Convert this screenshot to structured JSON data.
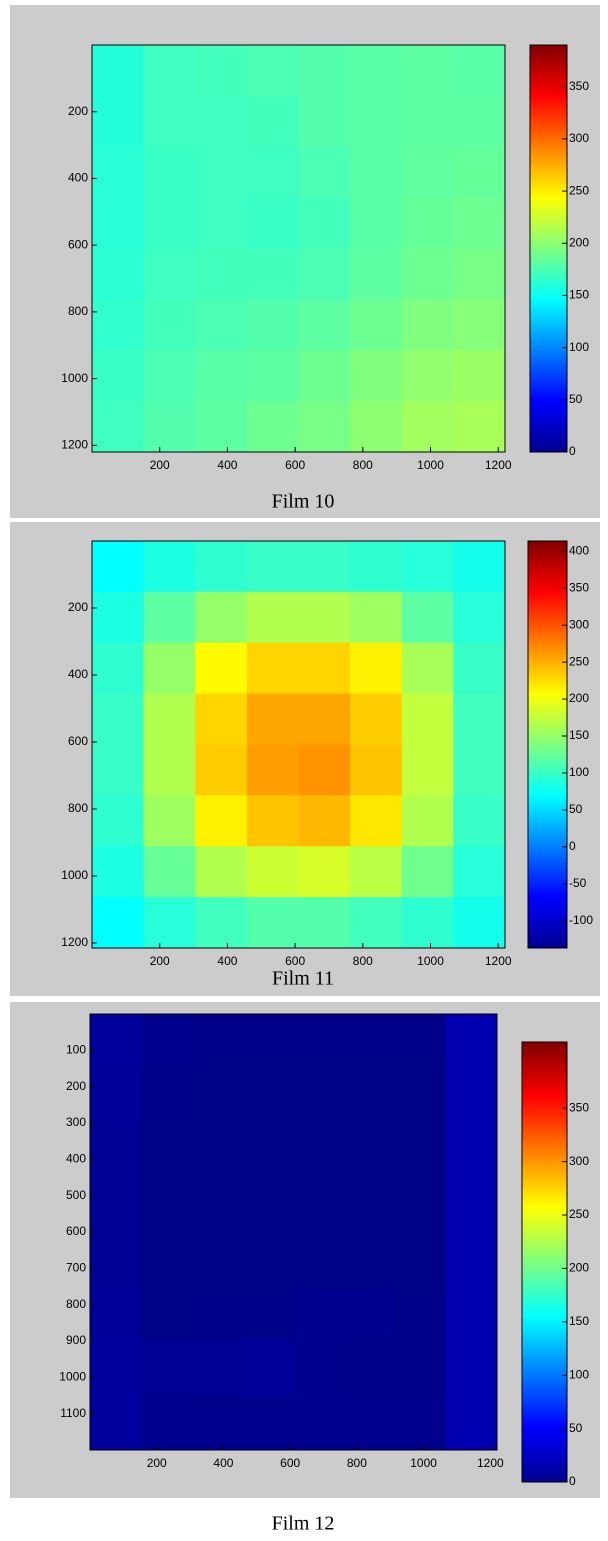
{
  "chart_data": [
    {
      "type": "heatmap",
      "caption": "Film 10",
      "xlim": [
        0,
        1220
      ],
      "ylim": [
        0,
        1220
      ],
      "clim": [
        0,
        390
      ],
      "xticks": [
        200,
        400,
        600,
        800,
        1000,
        1200
      ],
      "yticks": [
        200,
        400,
        600,
        800,
        1000,
        1200
      ],
      "cticks": [
        0,
        50,
        100,
        150,
        200,
        250,
        300,
        350
      ],
      "z": [
        [
          160,
          170,
          172,
          175,
          178,
          180,
          182,
          180
        ],
        [
          160,
          170,
          170,
          172,
          178,
          180,
          182,
          182
        ],
        [
          162,
          168,
          170,
          170,
          175,
          180,
          183,
          185
        ],
        [
          162,
          168,
          170,
          168,
          172,
          180,
          185,
          188
        ],
        [
          163,
          170,
          172,
          172,
          175,
          182,
          188,
          192
        ],
        [
          165,
          172,
          175,
          178,
          182,
          188,
          195,
          198
        ],
        [
          168,
          175,
          180,
          182,
          188,
          195,
          202,
          205
        ],
        [
          170,
          178,
          182,
          188,
          192,
          200,
          208,
          210
        ]
      ]
    },
    {
      "type": "heatmap",
      "caption": "Film 11",
      "xlim": [
        0,
        1220
      ],
      "ylim": [
        0,
        1215
      ],
      "clim": [
        -137,
        414
      ],
      "xticks": [
        200,
        400,
        600,
        800,
        1000,
        1200
      ],
      "yticks": [
        200,
        400,
        600,
        800,
        1000,
        1200
      ],
      "cticks": [
        -100,
        -50,
        0,
        50,
        100,
        150,
        200,
        250,
        300,
        350,
        400
      ],
      "z": [
        [
          70,
          85,
          95,
          100,
          100,
          95,
          90,
          80
        ],
        [
          85,
          120,
          150,
          165,
          165,
          155,
          120,
          90
        ],
        [
          95,
          150,
          210,
          230,
          230,
          215,
          160,
          100
        ],
        [
          100,
          165,
          230,
          255,
          255,
          235,
          175,
          105
        ],
        [
          100,
          165,
          235,
          260,
          265,
          240,
          175,
          105
        ],
        [
          95,
          155,
          215,
          240,
          245,
          220,
          165,
          100
        ],
        [
          85,
          125,
          165,
          180,
          185,
          170,
          130,
          90
        ],
        [
          70,
          90,
          105,
          115,
          115,
          105,
          95,
          80
        ]
      ]
    },
    {
      "type": "heatmap",
      "caption": "Film 12",
      "xlim": [
        0,
        1220
      ],
      "ylim": [
        0,
        1200
      ],
      "clim": [
        0,
        412
      ],
      "xticks": [
        200,
        400,
        600,
        800,
        1000,
        1200
      ],
      "yticks": [
        100,
        200,
        300,
        400,
        500,
        600,
        700,
        800,
        900,
        1000,
        1100
      ],
      "cticks": [
        0,
        50,
        100,
        150,
        200,
        250,
        300,
        350
      ],
      "z": [
        [
          12,
          5,
          4,
          4,
          4,
          4,
          4,
          20
        ],
        [
          10,
          4,
          3,
          3,
          3,
          3,
          3,
          20
        ],
        [
          8,
          3,
          3,
          3,
          3,
          3,
          3,
          20
        ],
        [
          8,
          3,
          3,
          3,
          3,
          3,
          3,
          20
        ],
        [
          8,
          3,
          3,
          3,
          3,
          3,
          3,
          20
        ],
        [
          10,
          3,
          4,
          4,
          6,
          6,
          4,
          20
        ],
        [
          12,
          8,
          8,
          10,
          6,
          4,
          4,
          20
        ],
        [
          12,
          6,
          5,
          5,
          5,
          5,
          5,
          20
        ]
      ]
    }
  ]
}
